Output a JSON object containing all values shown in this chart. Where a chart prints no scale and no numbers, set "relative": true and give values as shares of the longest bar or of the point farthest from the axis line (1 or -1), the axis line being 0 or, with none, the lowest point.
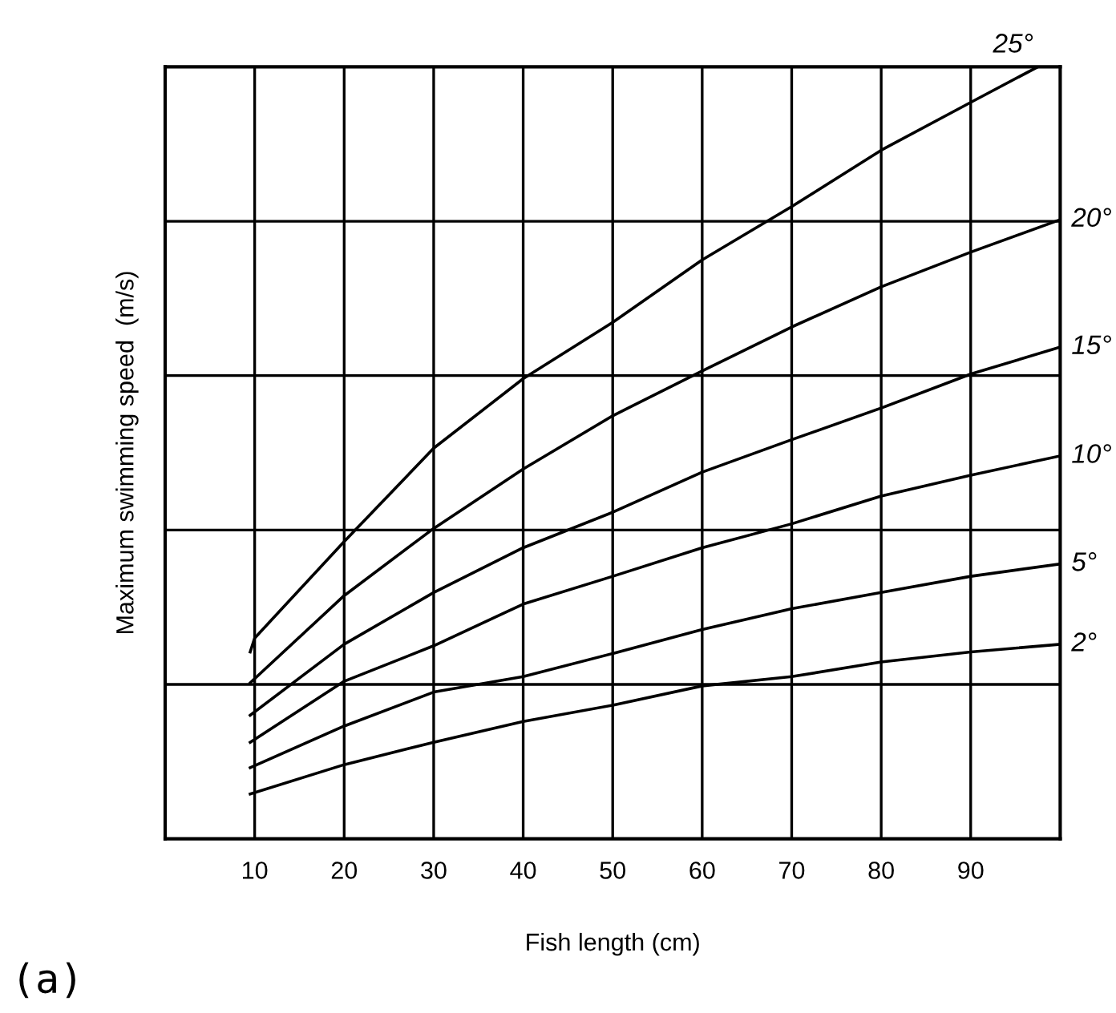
{
  "chart_data": {
    "type": "line",
    "xlabel": "Fish length (cm)",
    "ylabel": "Maximum swimming speed  (m/s)",
    "relative": true,
    "xlim": [
      0,
      100
    ],
    "xticks": [
      10,
      20,
      30,
      40,
      50,
      60,
      70,
      80,
      90
    ],
    "grid": true,
    "legend": false,
    "marker": "none",
    "line_style": "solid",
    "annotations": [
      "(a)"
    ],
    "series": [
      {
        "name": "25°",
        "color": "#000000",
        "x": [
          9.5,
          10,
          20,
          30,
          40,
          50,
          60,
          70,
          80,
          90,
          97.5
        ],
        "values": [
          0.242,
          0.26,
          0.385,
          0.506,
          0.596,
          0.669,
          0.75,
          0.819,
          0.892,
          0.954,
          1.0
        ]
      },
      {
        "name": "20°",
        "color": "#000000",
        "x": [
          9.5,
          20,
          30,
          40,
          50,
          60,
          70,
          80,
          90,
          100
        ],
        "values": [
          0.202,
          0.315,
          0.402,
          0.479,
          0.548,
          0.606,
          0.663,
          0.715,
          0.76,
          0.802
        ]
      },
      {
        "name": "15°",
        "color": "#000000",
        "x": [
          9.5,
          20,
          30,
          40,
          50,
          60,
          70,
          80,
          90,
          100
        ],
        "values": [
          0.16,
          0.252,
          0.319,
          0.377,
          0.423,
          0.475,
          0.517,
          0.558,
          0.602,
          0.637
        ]
      },
      {
        "name": "10°",
        "color": "#000000",
        "x": [
          9.5,
          20,
          30,
          40,
          50,
          60,
          70,
          80,
          90,
          100
        ],
        "values": [
          0.125,
          0.204,
          0.25,
          0.304,
          0.34,
          0.377,
          0.408,
          0.444,
          0.471,
          0.496
        ]
      },
      {
        "name": "5°",
        "color": "#000000",
        "x": [
          9.5,
          20,
          30,
          40,
          50,
          60,
          70,
          80,
          90,
          100
        ],
        "values": [
          0.092,
          0.146,
          0.19,
          0.21,
          0.24,
          0.271,
          0.298,
          0.319,
          0.34,
          0.356
        ]
      },
      {
        "name": "2°",
        "color": "#000000",
        "x": [
          9.5,
          20,
          30,
          40,
          50,
          60,
          70,
          80,
          90,
          100
        ],
        "values": [
          0.058,
          0.096,
          0.125,
          0.152,
          0.173,
          0.198,
          0.21,
          0.229,
          0.242,
          0.252
        ]
      }
    ]
  }
}
